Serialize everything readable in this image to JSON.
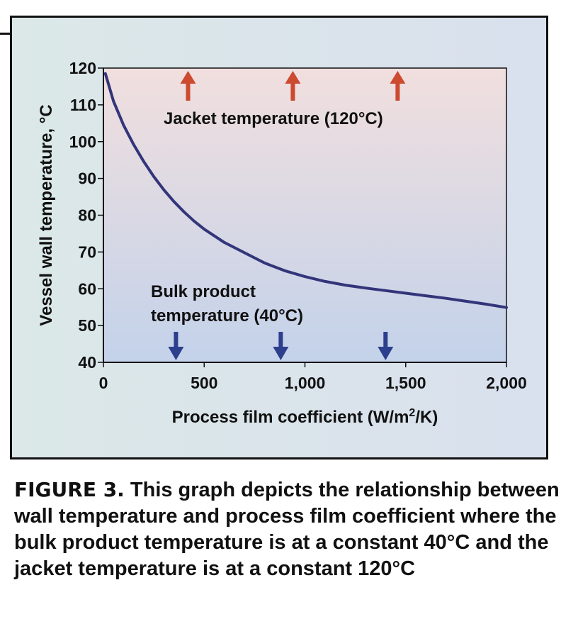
{
  "chart_data": {
    "type": "line",
    "title": "",
    "xlabel": "Process film coefficient (W/m",
    "xlabel_superscript": "2",
    "xlabel_suffix": "/K)",
    "ylabel": "Vessel wall temperature, °C",
    "xlim": [
      0,
      2000
    ],
    "ylim": [
      40,
      120
    ],
    "x_ticks": [
      0,
      500,
      1000,
      1500,
      2000
    ],
    "x_tick_labels": [
      "0",
      "500",
      "1,000",
      "1,500",
      "2,000"
    ],
    "y_ticks": [
      40,
      50,
      60,
      70,
      80,
      90,
      100,
      110,
      120
    ],
    "y_tick_labels": [
      "40",
      "50",
      "60",
      "70",
      "80",
      "90",
      "100",
      "110",
      "120"
    ],
    "grid": false,
    "series": [
      {
        "x": [
          10,
          50,
          100,
          150,
          200,
          250,
          300,
          350,
          400,
          450,
          500,
          600,
          700,
          800,
          900,
          1000,
          1100,
          1200,
          1300,
          1400,
          1500,
          1600,
          1700,
          1800,
          1900,
          2000
        ],
        "y": [
          118.5,
          111,
          104.5,
          99.2,
          94.6,
          90.5,
          86.9,
          83.7,
          80.9,
          78.4,
          76.2,
          72.6,
          69.8,
          67,
          64.9,
          63.3,
          62,
          61,
          60.2,
          59.5,
          58.8,
          58.1,
          57.4,
          56.6,
          55.8,
          54.9
        ]
      }
    ],
    "annotations": {
      "jacket_label": "Jacket temperature (120°C)",
      "jacket_arrow_x": [
        420,
        940,
        1460
      ],
      "bulk_label_line1": "Bulk product",
      "bulk_label_line2": "temperature (40°C)",
      "bulk_arrow_x": [
        360,
        880,
        1400
      ]
    },
    "colors": {
      "curve": "#33357a",
      "up_arrow": "#cc4a30",
      "down_arrow": "#2c3e8c",
      "plot_top": "#f1dfde",
      "plot_bottom": "#c3d2ea",
      "frame_bg_left": "#dbe8e7",
      "frame_bg_right": "#d9e0ee"
    }
  },
  "caption": {
    "label": "FIGURE 3.",
    "text": " This graph depicts the relationship between wall temperature and process film coefficient where the bulk product temperature is at a constant 40°C and the jacket temperature is at a constant 120°C"
  }
}
